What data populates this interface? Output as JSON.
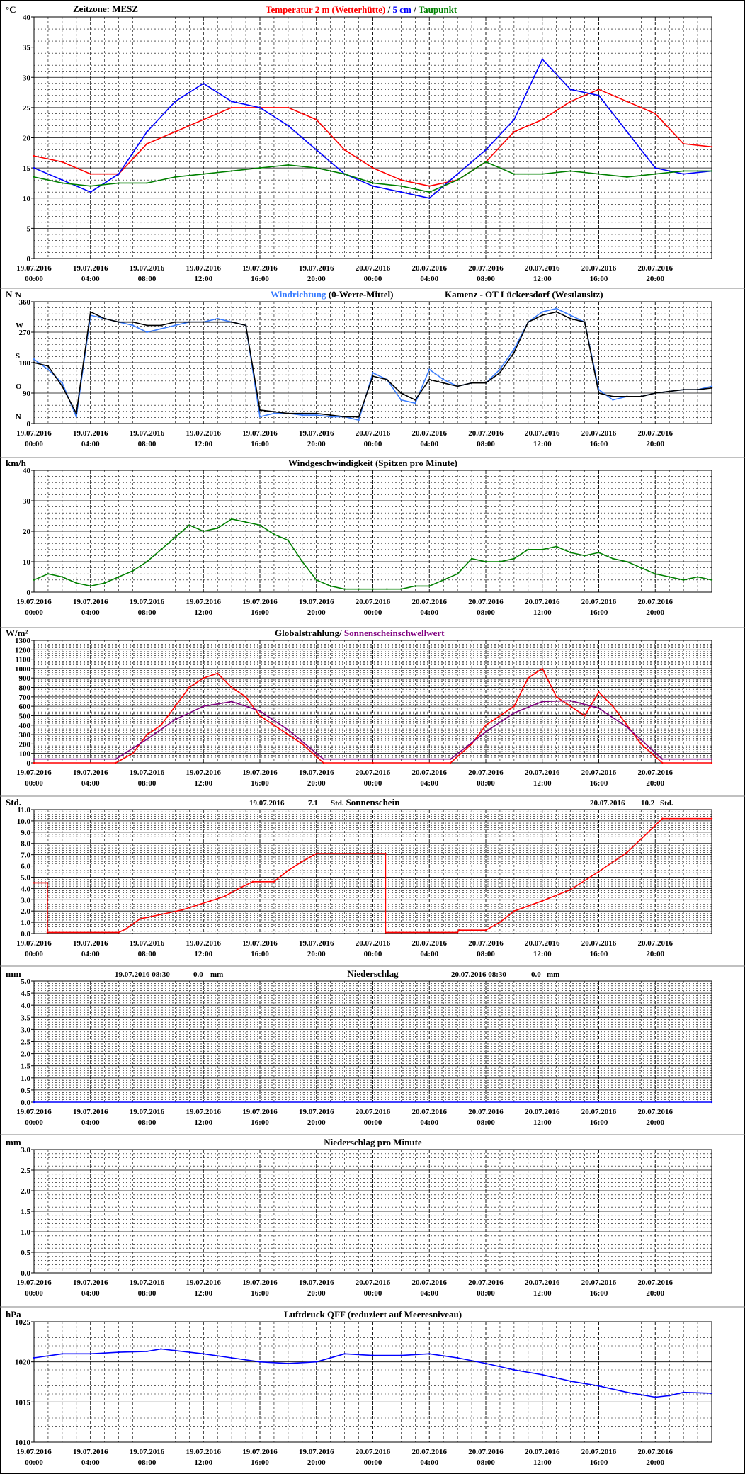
{
  "time_axis": {
    "labels": [
      [
        "19.07.2016",
        "00:00"
      ],
      [
        "19.07.2016",
        "04:00"
      ],
      [
        "19.07.2016",
        "08:00"
      ],
      [
        "19.07.2016",
        "12:00"
      ],
      [
        "19.07.2016",
        "16:00"
      ],
      [
        "19.07.2016",
        "20:00"
      ],
      [
        "20.07.2016",
        "00:00"
      ],
      [
        "20.07.2016",
        "04:00"
      ],
      [
        "20.07.2016",
        "08:00"
      ],
      [
        "20.07.2016",
        "12:00"
      ],
      [
        "20.07.2016",
        "16:00"
      ],
      [
        "20.07.2016",
        "20:00"
      ]
    ],
    "hours_total": 48
  },
  "colors": {
    "red": "#ff0000",
    "blue": "#0000ff",
    "lightblue": "#3a7dff",
    "green": "#008000",
    "purple": "#800080",
    "black": "#000000",
    "navy": "#000080"
  },
  "chart_data": [
    {
      "id": "temperature",
      "type": "line",
      "unit": "°C",
      "zone_label": "Zeitzone: MESZ",
      "title_parts": [
        {
          "text": "Temperatur 2 m (Wetterhütte)",
          "color": "#ff0000"
        },
        {
          "text": "  /  ",
          "color": "#000000"
        },
        {
          "text": "5 cm",
          "color": "#0000ff"
        },
        {
          "text": " / ",
          "color": "#000000"
        },
        {
          "text": "Taupunkt",
          "color": "#008000"
        }
      ],
      "ylim": [
        0,
        40
      ],
      "yticks": [
        0,
        5,
        10,
        15,
        20,
        25,
        30,
        35,
        40
      ],
      "series": [
        {
          "name": "Temperatur 2 m (Wetterhütte)",
          "color": "#ff0000",
          "x": [
            0,
            2,
            4,
            6,
            8,
            10,
            12,
            14,
            16,
            18,
            20,
            22,
            24,
            26,
            28,
            30,
            32,
            34,
            36,
            38,
            40,
            42,
            44,
            46,
            48
          ],
          "values": [
            17,
            16,
            14,
            14,
            19,
            21,
            23,
            25,
            25,
            25,
            23,
            18,
            15,
            13,
            12,
            13,
            16,
            21,
            23,
            26,
            28,
            26,
            24,
            19,
            18.5
          ]
        },
        {
          "name": "5 cm",
          "color": "#0000ff",
          "x": [
            0,
            2,
            4,
            6,
            8,
            10,
            12,
            14,
            16,
            18,
            20,
            22,
            24,
            26,
            28,
            30,
            32,
            34,
            36,
            38,
            40,
            42,
            44,
            46,
            48
          ],
          "values": [
            15,
            13,
            11,
            14,
            21,
            26,
            29,
            26,
            25,
            22,
            18,
            14,
            12,
            11,
            10,
            14,
            18,
            23,
            33,
            28,
            27,
            21,
            15,
            14,
            14.5
          ]
        },
        {
          "name": "Taupunkt",
          "color": "#008000",
          "x": [
            0,
            2,
            4,
            6,
            8,
            10,
            12,
            14,
            16,
            18,
            20,
            22,
            24,
            26,
            28,
            30,
            32,
            34,
            36,
            38,
            40,
            42,
            44,
            46,
            48
          ],
          "values": [
            13.5,
            12.5,
            12,
            12.5,
            12.5,
            13.5,
            14,
            14.5,
            15,
            15.5,
            15,
            14,
            12.5,
            12,
            11,
            13,
            16,
            14,
            14,
            14.5,
            14,
            13.5,
            14,
            14.5,
            14.5
          ]
        }
      ]
    },
    {
      "id": "wind_direction",
      "type": "line",
      "unit": "N °",
      "title_parts": [
        {
          "text": "Windrichtung",
          "color": "#3a7dff"
        },
        {
          "text": " (0-Werte-Mittel)",
          "color": "#000000"
        }
      ],
      "station": "Kamenz - OT Lückersdorf (Westlausitz)",
      "ylim": [
        0,
        360
      ],
      "yticks": [
        0,
        90,
        180,
        270,
        360
      ],
      "compass": [
        "N",
        "O",
        "S",
        "W",
        "N"
      ],
      "series": [
        {
          "name": "Windrichtung",
          "color": "#3a7dff",
          "x": [
            0,
            1,
            2,
            3,
            4,
            5,
            6,
            7,
            8,
            9,
            10,
            11,
            12,
            13,
            14,
            15,
            16,
            17,
            18,
            19,
            20,
            21,
            22,
            23,
            24,
            25,
            26,
            27,
            28,
            29,
            30,
            31,
            32,
            33,
            34,
            35,
            36,
            37,
            38,
            39,
            40,
            41,
            42,
            43,
            44,
            45,
            46,
            47,
            48
          ],
          "values": [
            190,
            160,
            120,
            20,
            320,
            310,
            300,
            290,
            270,
            280,
            290,
            300,
            300,
            310,
            300,
            290,
            20,
            30,
            30,
            25,
            25,
            20,
            20,
            10,
            150,
            130,
            70,
            60,
            160,
            130,
            110,
            120,
            120,
            160,
            220,
            300,
            330,
            340,
            320,
            300,
            100,
            70,
            80,
            80,
            90,
            95,
            100,
            100,
            110
          ]
        },
        {
          "name": "0-Werte-Mittel",
          "color": "#000000",
          "x": [
            0,
            1,
            2,
            3,
            4,
            5,
            6,
            7,
            8,
            9,
            10,
            11,
            12,
            13,
            14,
            15,
            16,
            17,
            18,
            19,
            20,
            21,
            22,
            23,
            24,
            25,
            26,
            27,
            28,
            29,
            30,
            31,
            32,
            33,
            34,
            35,
            36,
            37,
            38,
            39,
            40,
            41,
            42,
            43,
            44,
            45,
            46,
            47,
            48
          ],
          "values": [
            180,
            170,
            110,
            30,
            330,
            310,
            300,
            300,
            290,
            290,
            300,
            300,
            300,
            300,
            300,
            290,
            40,
            35,
            30,
            30,
            30,
            25,
            20,
            20,
            140,
            130,
            90,
            70,
            130,
            120,
            110,
            120,
            120,
            150,
            210,
            300,
            320,
            330,
            310,
            300,
            90,
            80,
            80,
            80,
            90,
            95,
            100,
            100,
            105
          ]
        }
      ]
    },
    {
      "id": "wind_speed",
      "type": "line",
      "unit": "km/h",
      "title": "Windgeschwindigkeit (Spitzen pro Minute)",
      "ylim": [
        0,
        40
      ],
      "yticks": [
        0,
        10,
        20,
        30,
        40
      ],
      "series": [
        {
          "name": "Windgeschwindigkeit",
          "color": "#008000",
          "x": [
            0,
            1,
            2,
            3,
            4,
            5,
            6,
            7,
            8,
            9,
            10,
            11,
            12,
            13,
            14,
            15,
            16,
            17,
            18,
            19,
            20,
            21,
            22,
            23,
            24,
            25,
            26,
            27,
            28,
            29,
            30,
            31,
            32,
            33,
            34,
            35,
            36,
            37,
            38,
            39,
            40,
            41,
            42,
            43,
            44,
            45,
            46,
            47,
            48
          ],
          "values": [
            4,
            6,
            5,
            3,
            2,
            3,
            5,
            7,
            10,
            14,
            18,
            22,
            20,
            21,
            24,
            23,
            22,
            19,
            17,
            10,
            4,
            2,
            1,
            1,
            1,
            1,
            1,
            2,
            2,
            4,
            6,
            11,
            10,
            10,
            11,
            14,
            14,
            15,
            13,
            12,
            13,
            11,
            10,
            8,
            6,
            5,
            4,
            5,
            4
          ]
        }
      ]
    },
    {
      "id": "radiation",
      "type": "line",
      "unit": "W/m²",
      "title_parts": [
        {
          "text": "Globalstrahlung/ ",
          "color": "#000000"
        },
        {
          "text": "Sonnenscheinschwellwert",
          "color": "#800080"
        }
      ],
      "ylim": [
        0,
        1300
      ],
      "yticks": [
        0,
        100,
        200,
        300,
        400,
        500,
        600,
        700,
        800,
        900,
        1000,
        1100,
        1200,
        1300
      ],
      "series": [
        {
          "name": "Globalstrahlung",
          "color": "#ff0000",
          "x": [
            0,
            5.8,
            7,
            8,
            9,
            10,
            11,
            12,
            13,
            14,
            15,
            16,
            17,
            18,
            19,
            20.5,
            24,
            29.5,
            31,
            32,
            33,
            34,
            35,
            36,
            37,
            38,
            39,
            40,
            41,
            42,
            43,
            44.5,
            48
          ],
          "values": [
            0,
            0,
            100,
            300,
            400,
            600,
            800,
            900,
            950,
            800,
            700,
            500,
            400,
            300,
            200,
            0,
            0,
            0,
            200,
            400,
            500,
            600,
            900,
            1000,
            700,
            600,
            500,
            750,
            600,
            400,
            200,
            0,
            0
          ]
        },
        {
          "name": "Sonnenscheinschwellwert",
          "color": "#800080",
          "x": [
            0,
            5.8,
            8,
            10,
            12,
            14,
            16,
            18,
            20.5,
            24,
            29.5,
            32,
            34,
            36,
            38,
            40,
            42,
            44.5,
            48
          ],
          "values": [
            40,
            40,
            250,
            460,
            600,
            650,
            550,
            350,
            40,
            40,
            40,
            330,
            530,
            650,
            660,
            580,
            380,
            40,
            40
          ]
        }
      ]
    },
    {
      "id": "sunshine",
      "type": "line",
      "unit": "Std.",
      "title": "Sonnenschein",
      "day_totals": [
        {
          "date": "19.07.2016",
          "value": "7.1",
          "unit": "Std."
        },
        {
          "date": "20.07.2016",
          "value": "10.2",
          "unit": "Std."
        }
      ],
      "ylim": [
        0,
        11
      ],
      "yticks": [
        0,
        1,
        2,
        3,
        4,
        5,
        6,
        7,
        8,
        9,
        10,
        11
      ],
      "series": [
        {
          "name": "Sonnenschein",
          "color": "#ff0000",
          "x": [
            0,
            0.95,
            0.95,
            6,
            6.5,
            7.5,
            9,
            10.5,
            11.5,
            12.5,
            13.5,
            14.5,
            15.5,
            17,
            18,
            19,
            20,
            24.9,
            24.9,
            30,
            30.1,
            32,
            33,
            34,
            36,
            38,
            40,
            42,
            43,
            44.5,
            48
          ],
          "values": [
            4.5,
            4.5,
            0.1,
            0.1,
            0.4,
            1.3,
            1.7,
            2.1,
            2.5,
            2.9,
            3.3,
            4.0,
            4.6,
            4.6,
            5.6,
            6.4,
            7.1,
            7.1,
            0.1,
            0.1,
            0.3,
            0.3,
            1.0,
            2.0,
            2.9,
            3.9,
            5.5,
            7.2,
            8.4,
            10.2,
            10.2
          ]
        }
      ]
    },
    {
      "id": "precipitation",
      "type": "line",
      "unit": "mm",
      "title": "Niederschlag",
      "day_totals": [
        {
          "date": "19.07.2016 08:30",
          "value": "0.0",
          "unit": "mm"
        },
        {
          "date": "20.07.2016 08:30",
          "value": "0.0",
          "unit": "mm"
        }
      ],
      "ylim": [
        0,
        5
      ],
      "yticks": [
        0,
        0.5,
        1,
        1.5,
        2,
        2.5,
        3,
        3.5,
        4,
        4.5,
        5
      ],
      "series": [
        {
          "name": "Niederschlag",
          "color": "#0000ff",
          "x": [
            0,
            48
          ],
          "values": [
            0,
            0
          ]
        }
      ]
    },
    {
      "id": "precipitation_per_minute",
      "type": "line",
      "unit": "mm",
      "title": "Niederschlag pro Minute",
      "ylim": [
        0,
        3
      ],
      "yticks": [
        0,
        0.5,
        1,
        1.5,
        2,
        2.5,
        3
      ],
      "series": []
    },
    {
      "id": "pressure",
      "type": "line",
      "unit": "hPa",
      "title": "Luftdruck QFF (reduziert auf Meeresniveau)",
      "ylim": [
        1010,
        1025
      ],
      "yticks": [
        1010,
        1015,
        1020,
        1025
      ],
      "series": [
        {
          "name": "Luftdruck QFF",
          "color": "#0000ff",
          "x": [
            0,
            2,
            4,
            6,
            8,
            9,
            10,
            12,
            14,
            16,
            18,
            20,
            22,
            24,
            26,
            28,
            30,
            32,
            34,
            36,
            38,
            40,
            42,
            44,
            45,
            46,
            48
          ],
          "values": [
            1020.5,
            1021,
            1021,
            1021.2,
            1021.3,
            1021.6,
            1021.4,
            1021,
            1020.5,
            1020,
            1019.8,
            1020,
            1021,
            1020.8,
            1020.8,
            1021,
            1020.5,
            1019.8,
            1019,
            1018.4,
            1017.6,
            1017,
            1016.2,
            1015.6,
            1015.8,
            1016.2,
            1016.1
          ]
        }
      ]
    }
  ]
}
